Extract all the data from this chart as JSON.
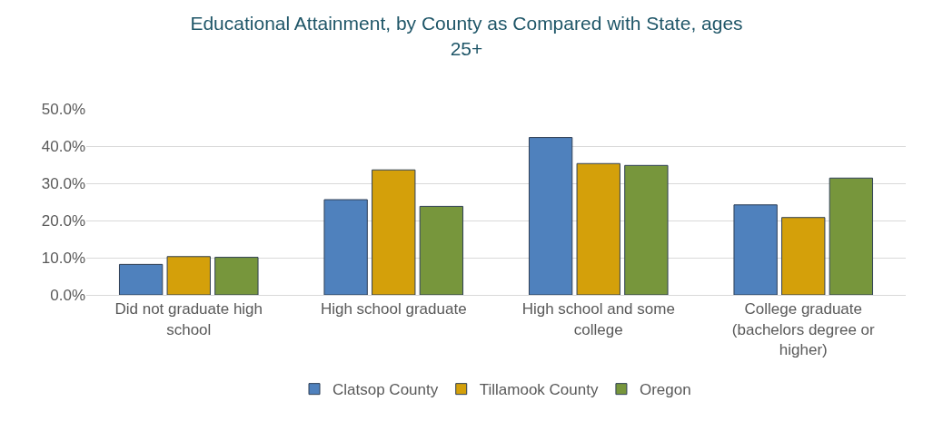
{
  "chart_data": {
    "type": "bar",
    "title": "Educational Attainment, by County as Compared with State, ages 25+",
    "categories": [
      "Did not graduate high school",
      "High school graduate",
      "High school and some college",
      "College graduate (bachelors degree or higher)"
    ],
    "series": [
      {
        "name": "Clatsop County",
        "color": "#4f81bd",
        "values": [
          8.2,
          25.6,
          42.3,
          24.2
        ]
      },
      {
        "name": "Tillamook County",
        "color": "#d4a00a",
        "values": [
          10.3,
          33.6,
          35.3,
          20.8
        ]
      },
      {
        "name": "Oregon",
        "color": "#77963c",
        "values": [
          10.1,
          23.8,
          34.8,
          31.4
        ]
      }
    ],
    "ylim": [
      0,
      50
    ],
    "yticks": [
      {
        "value": 0,
        "label": "0.0%"
      },
      {
        "value": 10,
        "label": "10.0%"
      },
      {
        "value": 20,
        "label": "20.0%"
      },
      {
        "value": 30,
        "label": "30.0%"
      },
      {
        "value": 40,
        "label": "40.0%"
      },
      {
        "value": 50,
        "label": "50.0%"
      }
    ],
    "grid": "y",
    "legend": "bottom"
  }
}
